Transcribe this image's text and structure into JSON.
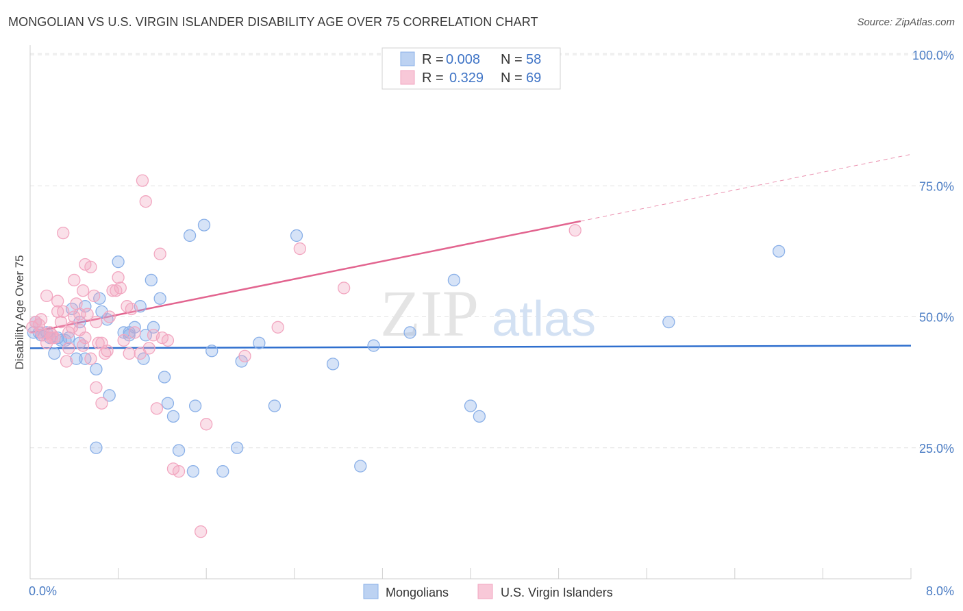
{
  "title": "MONGOLIAN VS U.S. VIRGIN ISLANDER DISABILITY AGE OVER 75 CORRELATION CHART",
  "source": "Source: ZipAtlas.com",
  "watermark": {
    "zip": "ZIP",
    "atlas": "atlas"
  },
  "chart_data": {
    "type": "scatter",
    "title": "MONGOLIAN VS U.S. VIRGIN ISLANDER DISABILITY AGE OVER 75 CORRELATION CHART",
    "xlabel": "",
    "ylabel": "Disability Age Over 75",
    "xlim": [
      0,
      8.0
    ],
    "ylim": [
      0,
      105
    ],
    "x_tick_labels": [
      "0.0%",
      "8.0%"
    ],
    "y_ticks": [
      25,
      50,
      75,
      100
    ],
    "y_tick_labels": [
      "25.0%",
      "50.0%",
      "75.0%",
      "100.0%"
    ],
    "grid": true,
    "legend": {
      "position": "top-center",
      "rows": [
        {
          "r_label": "R =",
          "r_value": "0.008",
          "n_label": "N =",
          "n_value": "58"
        },
        {
          "r_label": "R =",
          "r_value": "0.329",
          "n_label": "N =",
          "n_value": "69"
        }
      ]
    },
    "series": [
      {
        "name": "Mongolians",
        "color": "#8ab0e8",
        "line_color": "#2f6fce",
        "r": 0.008,
        "n": 58,
        "trend": {
          "x": [
            0.0,
            8.0
          ],
          "y": [
            44.0,
            44.5
          ],
          "dashed_from": null
        },
        "points": [
          [
            0.03,
            47
          ],
          [
            0.05,
            49
          ],
          [
            0.08,
            47
          ],
          [
            0.1,
            46.5
          ],
          [
            0.15,
            47
          ],
          [
            0.18,
            46
          ],
          [
            0.22,
            43
          ],
          [
            0.25,
            46
          ],
          [
            0.28,
            45.5
          ],
          [
            0.32,
            45.5
          ],
          [
            0.35,
            46
          ],
          [
            0.38,
            51.5
          ],
          [
            0.42,
            42
          ],
          [
            0.45,
            45
          ],
          [
            0.5,
            42
          ],
          [
            0.6,
            40
          ],
          [
            0.63,
            53.5
          ],
          [
            0.65,
            51
          ],
          [
            0.7,
            49.5
          ],
          [
            0.72,
            35
          ],
          [
            0.8,
            60.5
          ],
          [
            0.85,
            47
          ],
          [
            0.9,
            47
          ],
          [
            0.95,
            48
          ],
          [
            1.0,
            52
          ],
          [
            1.03,
            42
          ],
          [
            1.05,
            46.5
          ],
          [
            1.1,
            57
          ],
          [
            1.12,
            48
          ],
          [
            1.18,
            53.5
          ],
          [
            1.22,
            38.5
          ],
          [
            1.25,
            33.5
          ],
          [
            1.3,
            31
          ],
          [
            1.35,
            24.5
          ],
          [
            1.45,
            65.5
          ],
          [
            1.48,
            20.5
          ],
          [
            1.5,
            33
          ],
          [
            1.58,
            67.5
          ],
          [
            1.65,
            43.5
          ],
          [
            1.75,
            20.5
          ],
          [
            1.88,
            25
          ],
          [
            1.92,
            41.5
          ],
          [
            2.08,
            45
          ],
          [
            2.22,
            33
          ],
          [
            2.42,
            65.5
          ],
          [
            2.75,
            41
          ],
          [
            3.0,
            21.5
          ],
          [
            3.12,
            44.5
          ],
          [
            3.45,
            47
          ],
          [
            3.85,
            57
          ],
          [
            4.0,
            33
          ],
          [
            4.08,
            31
          ],
          [
            5.8,
            49
          ],
          [
            6.8,
            62.5
          ],
          [
            0.45,
            49
          ],
          [
            0.5,
            52
          ],
          [
            0.6,
            25
          ],
          [
            0.9,
            46.5
          ]
        ]
      },
      {
        "name": "U.S. Virgin Islanders",
        "color": "#f2a6c0",
        "line_color": "#e2648f",
        "r": 0.329,
        "n": 69,
        "trend": {
          "x": [
            0.0,
            8.0
          ],
          "y": [
            47.0,
            81.0
          ],
          "dashed_from": 5.0
        },
        "points": [
          [
            0.02,
            48
          ],
          [
            0.05,
            49
          ],
          [
            0.08,
            48.5
          ],
          [
            0.1,
            47
          ],
          [
            0.12,
            46.5
          ],
          [
            0.15,
            54
          ],
          [
            0.18,
            47
          ],
          [
            0.2,
            46
          ],
          [
            0.22,
            46
          ],
          [
            0.25,
            51
          ],
          [
            0.28,
            49
          ],
          [
            0.3,
            51
          ],
          [
            0.33,
            41.5
          ],
          [
            0.35,
            44
          ],
          [
            0.38,
            48
          ],
          [
            0.4,
            57
          ],
          [
            0.42,
            52.5
          ],
          [
            0.45,
            47.5
          ],
          [
            0.48,
            55
          ],
          [
            0.5,
            46
          ],
          [
            0.52,
            50.5
          ],
          [
            0.55,
            42
          ],
          [
            0.58,
            54
          ],
          [
            0.6,
            49
          ],
          [
            0.62,
            45
          ],
          [
            0.65,
            45
          ],
          [
            0.68,
            43
          ],
          [
            0.7,
            43.5
          ],
          [
            0.72,
            50
          ],
          [
            0.75,
            55
          ],
          [
            0.78,
            55
          ],
          [
            0.8,
            57.5
          ],
          [
            0.82,
            55.5
          ],
          [
            0.85,
            45.5
          ],
          [
            0.88,
            52
          ],
          [
            0.9,
            43
          ],
          [
            0.92,
            51.5
          ],
          [
            0.95,
            47
          ],
          [
            1.0,
            43
          ],
          [
            1.02,
            76
          ],
          [
            1.05,
            72
          ],
          [
            1.08,
            44
          ],
          [
            1.12,
            46.5
          ],
          [
            1.15,
            32.5
          ],
          [
            1.18,
            62
          ],
          [
            1.2,
            46
          ],
          [
            1.25,
            45.5
          ],
          [
            1.3,
            21
          ],
          [
            1.35,
            20.5
          ],
          [
            1.55,
            9
          ],
          [
            1.6,
            29.5
          ],
          [
            1.95,
            42.5
          ],
          [
            2.25,
            48
          ],
          [
            2.45,
            63
          ],
          [
            2.85,
            55.5
          ],
          [
            4.95,
            66.5
          ],
          [
            0.3,
            66
          ],
          [
            0.45,
            50.5
          ],
          [
            0.5,
            60
          ],
          [
            0.55,
            59.5
          ],
          [
            0.6,
            36.5
          ],
          [
            0.65,
            33.5
          ],
          [
            0.4,
            50
          ],
          [
            0.25,
            53
          ],
          [
            0.35,
            47
          ],
          [
            0.15,
            45
          ],
          [
            0.1,
            49.5
          ],
          [
            0.2,
            46.5
          ],
          [
            0.48,
            44.5
          ]
        ]
      }
    ]
  }
}
